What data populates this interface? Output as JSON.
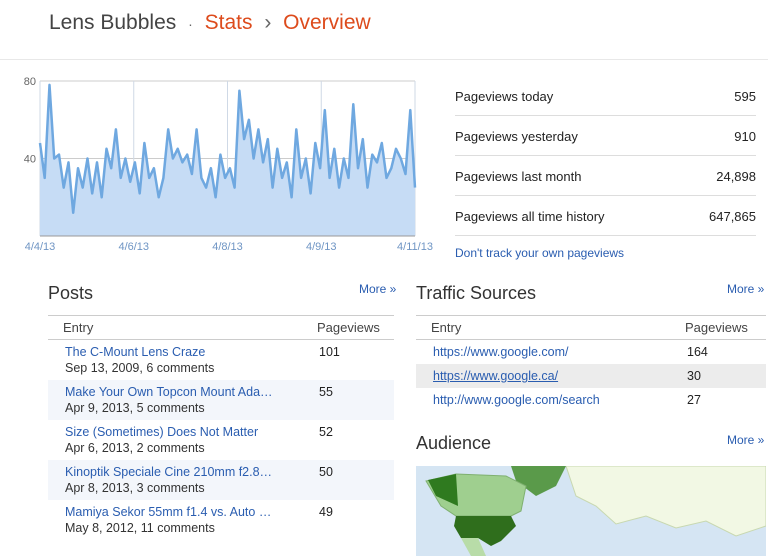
{
  "header": {
    "blog": "Lens Bubbles",
    "dot": "·",
    "section": "Stats",
    "arrow": "›",
    "page": "Overview"
  },
  "chart_data": {
    "type": "line",
    "color": "#6fa8e0",
    "values": [
      48,
      30,
      78,
      40,
      42,
      25,
      38,
      12,
      35,
      25,
      40,
      22,
      38,
      20,
      45,
      35,
      55,
      30,
      40,
      28,
      38,
      22,
      48,
      30,
      35,
      20,
      30,
      55,
      40,
      45,
      38,
      42,
      32,
      55,
      30,
      25,
      35,
      20,
      42,
      30,
      35,
      25,
      75,
      50,
      60,
      40,
      55,
      38,
      50,
      25,
      45,
      30,
      38,
      20,
      55,
      30,
      40,
      22,
      48,
      35,
      65,
      30,
      45,
      25,
      40,
      30,
      68,
      35,
      50,
      25,
      42,
      38,
      48,
      30,
      35,
      45,
      40,
      32,
      65,
      25
    ],
    "ylim": [
      0,
      80
    ],
    "yticks": [
      40,
      80
    ],
    "grid": true,
    "xtick_labels": [
      "4/4/13",
      "4/6/13",
      "4/8/13",
      "4/9/13",
      "4/11/13"
    ]
  },
  "stats": {
    "rows": [
      [
        "Pageviews today",
        "595"
      ],
      [
        "Pageviews yesterday",
        "910"
      ],
      [
        "Pageviews last month",
        "24,898"
      ],
      [
        "Pageviews all time history",
        "647,865"
      ]
    ],
    "link": "Don't track your own pageviews"
  },
  "posts": {
    "title": "Posts",
    "more": "More »",
    "columns": [
      "Entry",
      "Pageviews"
    ],
    "rows": [
      [
        "The C-Mount Lens Craze",
        "Sep 13, 2009, 6 comments",
        101
      ],
      [
        "Make Your Own Topcon Mount Ada…",
        "Apr 9, 2013, 5 comments",
        55
      ],
      [
        "Size (Sometimes) Does Not Matter",
        "Apr 6, 2013, 2 comments",
        52
      ],
      [
        "Kinoptik Speciale Cine 210mm f2.8…",
        "Apr 8, 2013, 3 comments",
        50
      ],
      [
        "Mamiya Sekor 55mm f1.4 vs. Auto …",
        "May 8, 2012, 11 comments",
        49
      ]
    ]
  },
  "traffic": {
    "title": "Traffic Sources",
    "more": "More »",
    "columns": [
      "Entry",
      "Pageviews"
    ],
    "rows": [
      [
        "https://www.google.com/",
        164
      ],
      [
        "https://www.google.ca/",
        30
      ],
      [
        "http://www.google.com/search",
        27
      ]
    ]
  },
  "audience": {
    "title": "Audience",
    "more": "More »"
  }
}
